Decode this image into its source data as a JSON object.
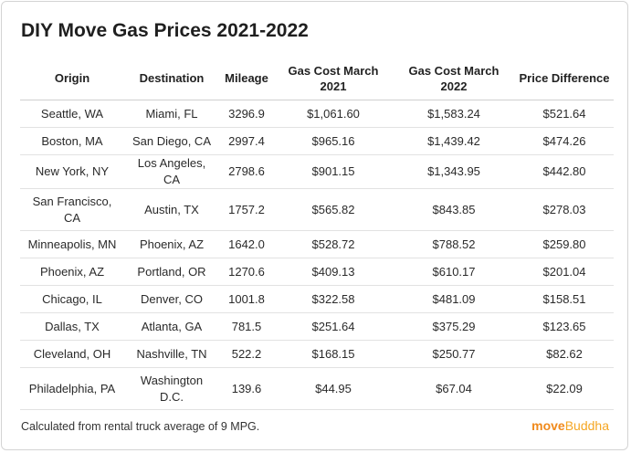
{
  "title": "DIY Move Gas Prices 2021-2022",
  "columns": [
    "Origin",
    "Destination",
    "Mileage",
    "Gas Cost March 2021",
    "Gas Cost March 2022",
    "Price Difference"
  ],
  "rows": [
    {
      "origin": "Seattle, WA",
      "destination": "Miami, FL",
      "mileage": "3296.9",
      "cost_2021": "$1,061.60",
      "cost_2022": "$1,583.24",
      "difference": "$521.64"
    },
    {
      "origin": "Boston, MA",
      "destination": "San Diego, CA",
      "mileage": "2997.4",
      "cost_2021": "$965.16",
      "cost_2022": "$1,439.42",
      "difference": "$474.26"
    },
    {
      "origin": "New York, NY",
      "destination": "Los Angeles, CA",
      "mileage": "2798.6",
      "cost_2021": "$901.15",
      "cost_2022": "$1,343.95",
      "difference": "$442.80"
    },
    {
      "origin": "San Francisco, CA",
      "destination": "Austin, TX",
      "mileage": "1757.2",
      "cost_2021": "$565.82",
      "cost_2022": "$843.85",
      "difference": "$278.03"
    },
    {
      "origin": "Minneapolis, MN",
      "destination": "Phoenix, AZ",
      "mileage": "1642.0",
      "cost_2021": "$528.72",
      "cost_2022": "$788.52",
      "difference": "$259.80"
    },
    {
      "origin": "Phoenix, AZ",
      "destination": "Portland, OR",
      "mileage": "1270.6",
      "cost_2021": "$409.13",
      "cost_2022": "$610.17",
      "difference": "$201.04"
    },
    {
      "origin": "Chicago, IL",
      "destination": "Denver, CO",
      "mileage": "1001.8",
      "cost_2021": "$322.58",
      "cost_2022": "$481.09",
      "difference": "$158.51"
    },
    {
      "origin": "Dallas, TX",
      "destination": "Atlanta, GA",
      "mileage": "781.5",
      "cost_2021": "$251.64",
      "cost_2022": "$375.29",
      "difference": "$123.65"
    },
    {
      "origin": "Cleveland, OH",
      "destination": "Nashville, TN",
      "mileage": "522.2",
      "cost_2021": "$168.15",
      "cost_2022": "$250.77",
      "difference": "$82.62"
    },
    {
      "origin": "Philadelphia, PA",
      "destination": "Washington D.C.",
      "mileage": "139.6",
      "cost_2021": "$44.95",
      "cost_2022": "$67.04",
      "difference": "$22.09"
    }
  ],
  "footer_note": "Calculated from rental truck average of 9 MPG.",
  "brand": {
    "part1": "move",
    "part2": "Buddha"
  },
  "colors": {
    "brand_primary": "#f08a1c",
    "brand_secondary": "#f5a623",
    "row_divider": "#e2e2e2"
  }
}
